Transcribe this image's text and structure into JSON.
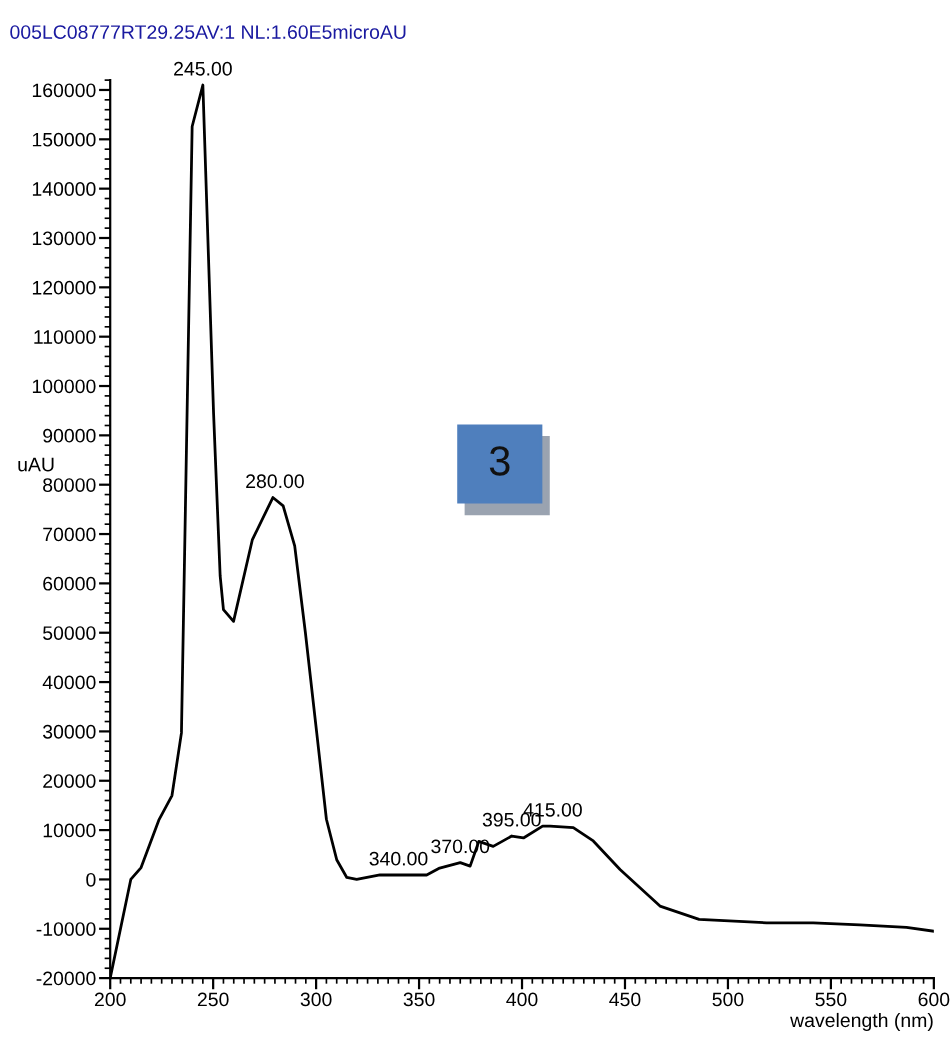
{
  "chart_data": {
    "type": "line",
    "title": "005LC08777RT29.25AV:1 NL:1.60E5microAU",
    "xlabel": "wavelength (nm)",
    "ylabel": "uAU",
    "x": [
      200,
      210,
      215,
      223.6,
      230,
      234.6,
      239.8,
      245,
      250.2,
      253.4,
      255,
      259.9,
      269,
      279,
      284,
      289.6,
      294.8,
      300.3,
      305,
      310,
      314.9,
      319.7,
      331,
      353.7,
      360,
      370,
      374.8,
      379,
      386,
      395,
      400.7,
      410,
      413.6,
      424.9,
      434.6,
      447.6,
      467,
      486,
      518.8,
      541.4,
      564,
      586.7,
      600
    ],
    "series": [
      {
        "color": "#000000",
        "values": [
          -20000,
          0,
          2400,
          12000,
          17000,
          29700,
          152600,
          161000,
          94500,
          61500,
          54700,
          52300,
          68800,
          77400,
          75700,
          67600,
          50000,
          29700,
          12200,
          4000,
          400,
          0,
          900,
          900,
          2300,
          3400,
          2700,
          7700,
          6700,
          8800,
          8400,
          10800,
          10800,
          10500,
          7800,
          2000,
          -5400,
          -8100,
          -8800,
          -8800,
          -9200,
          -9700,
          -10500
        ]
      }
    ],
    "xlim": [
      200,
      600
    ],
    "ylim": [
      -20000,
      162000
    ],
    "xticks": [
      200,
      250,
      300,
      350,
      400,
      450,
      500,
      550,
      600
    ],
    "yticks": [
      -20000,
      -10000,
      0,
      10000,
      20000,
      30000,
      40000,
      50000,
      60000,
      70000,
      80000,
      90000,
      100000,
      110000,
      120000,
      130000,
      140000,
      150000,
      160000
    ],
    "annotations": [
      {
        "text": "245.00",
        "x": 245,
        "y": 161000
      },
      {
        "text": "280.00",
        "x": 280,
        "y": 77400
      },
      {
        "text": "340.00",
        "x": 340,
        "y": 900
      },
      {
        "text": "370.00",
        "x": 370,
        "y": 3400
      },
      {
        "text": "395.00",
        "x": 395,
        "y": 8800
      },
      {
        "text": "415.00",
        "x": 415,
        "y": 10800
      },
      "3"
    ],
    "grid": false,
    "legend": false,
    "marker": "none",
    "line_style": "solid"
  }
}
